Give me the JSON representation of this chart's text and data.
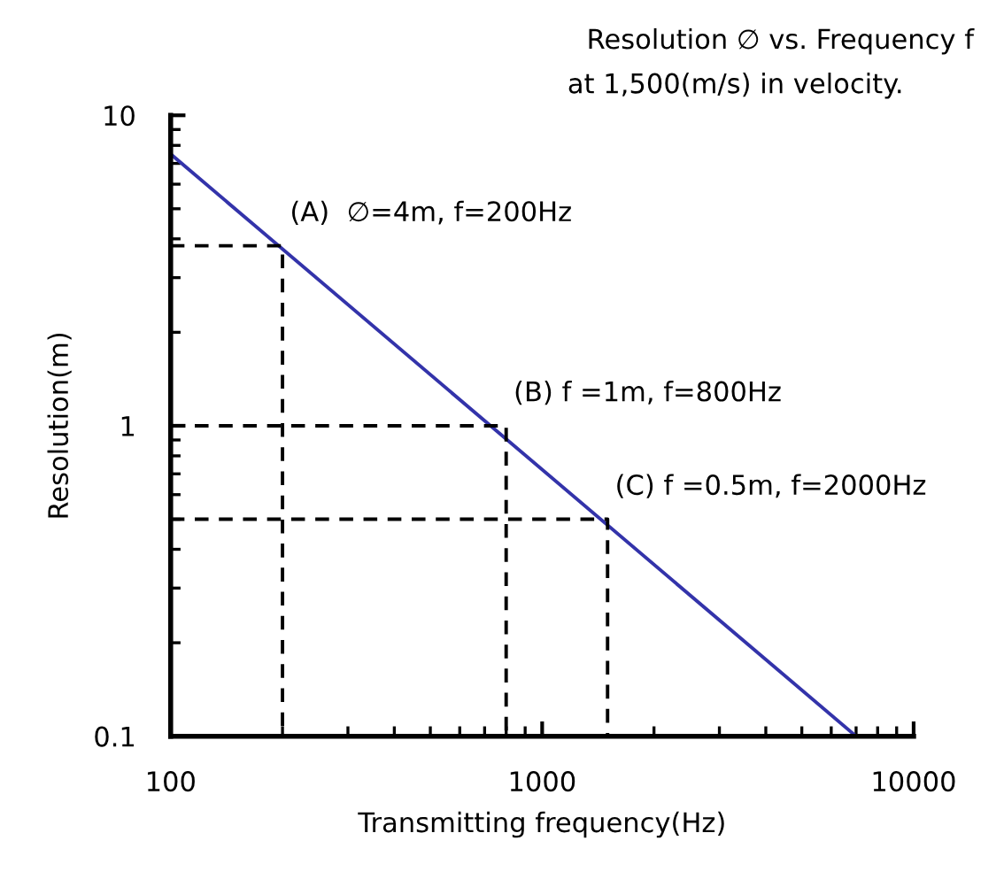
{
  "chart_data": {
    "type": "line",
    "title": "Resolution ∅ vs. Frequency f",
    "subtitle": "at 1,500(m/s) in velocity.",
    "xlabel": "Transmitting frequency(Hz)",
    "ylabel": "Resolution(m)",
    "log": "xy",
    "xlim": [
      100,
      10000
    ],
    "ylim": [
      0.1,
      10
    ],
    "xticks": [
      100,
      1000,
      10000
    ],
    "yticks": [
      0.1,
      1,
      10
    ],
    "grid": false,
    "series": [
      {
        "x": [
          100,
          7000
        ],
        "values": [
          7.5,
          0.1
        ],
        "color": "#3333aa",
        "line_style": "solid"
      },
      {
        "x": [
          100,
          200,
          200
        ],
        "values": [
          3.8,
          3.8,
          0.1
        ],
        "color": "#000000",
        "line_style": "dashed"
      },
      {
        "x": [
          100,
          800,
          800
        ],
        "values": [
          1,
          1,
          0.1
        ],
        "color": "#000000",
        "line_style": "dashed"
      },
      {
        "x": [
          100,
          1500,
          1500
        ],
        "values": [
          0.5,
          0.5,
          0.1
        ],
        "color": "#000000",
        "line_style": "dashed"
      }
    ],
    "annotations": [
      {
        "text": "(A)  ∅=4m, f=200Hz",
        "x": 200,
        "y": 3.8
      },
      {
        "text": "(B) f =1m, f=800Hz",
        "x": 800,
        "y": 1
      },
      {
        "text": "(C) f =0.5m, f=2000Hz",
        "x": 1500,
        "y": 0.5
      }
    ]
  }
}
